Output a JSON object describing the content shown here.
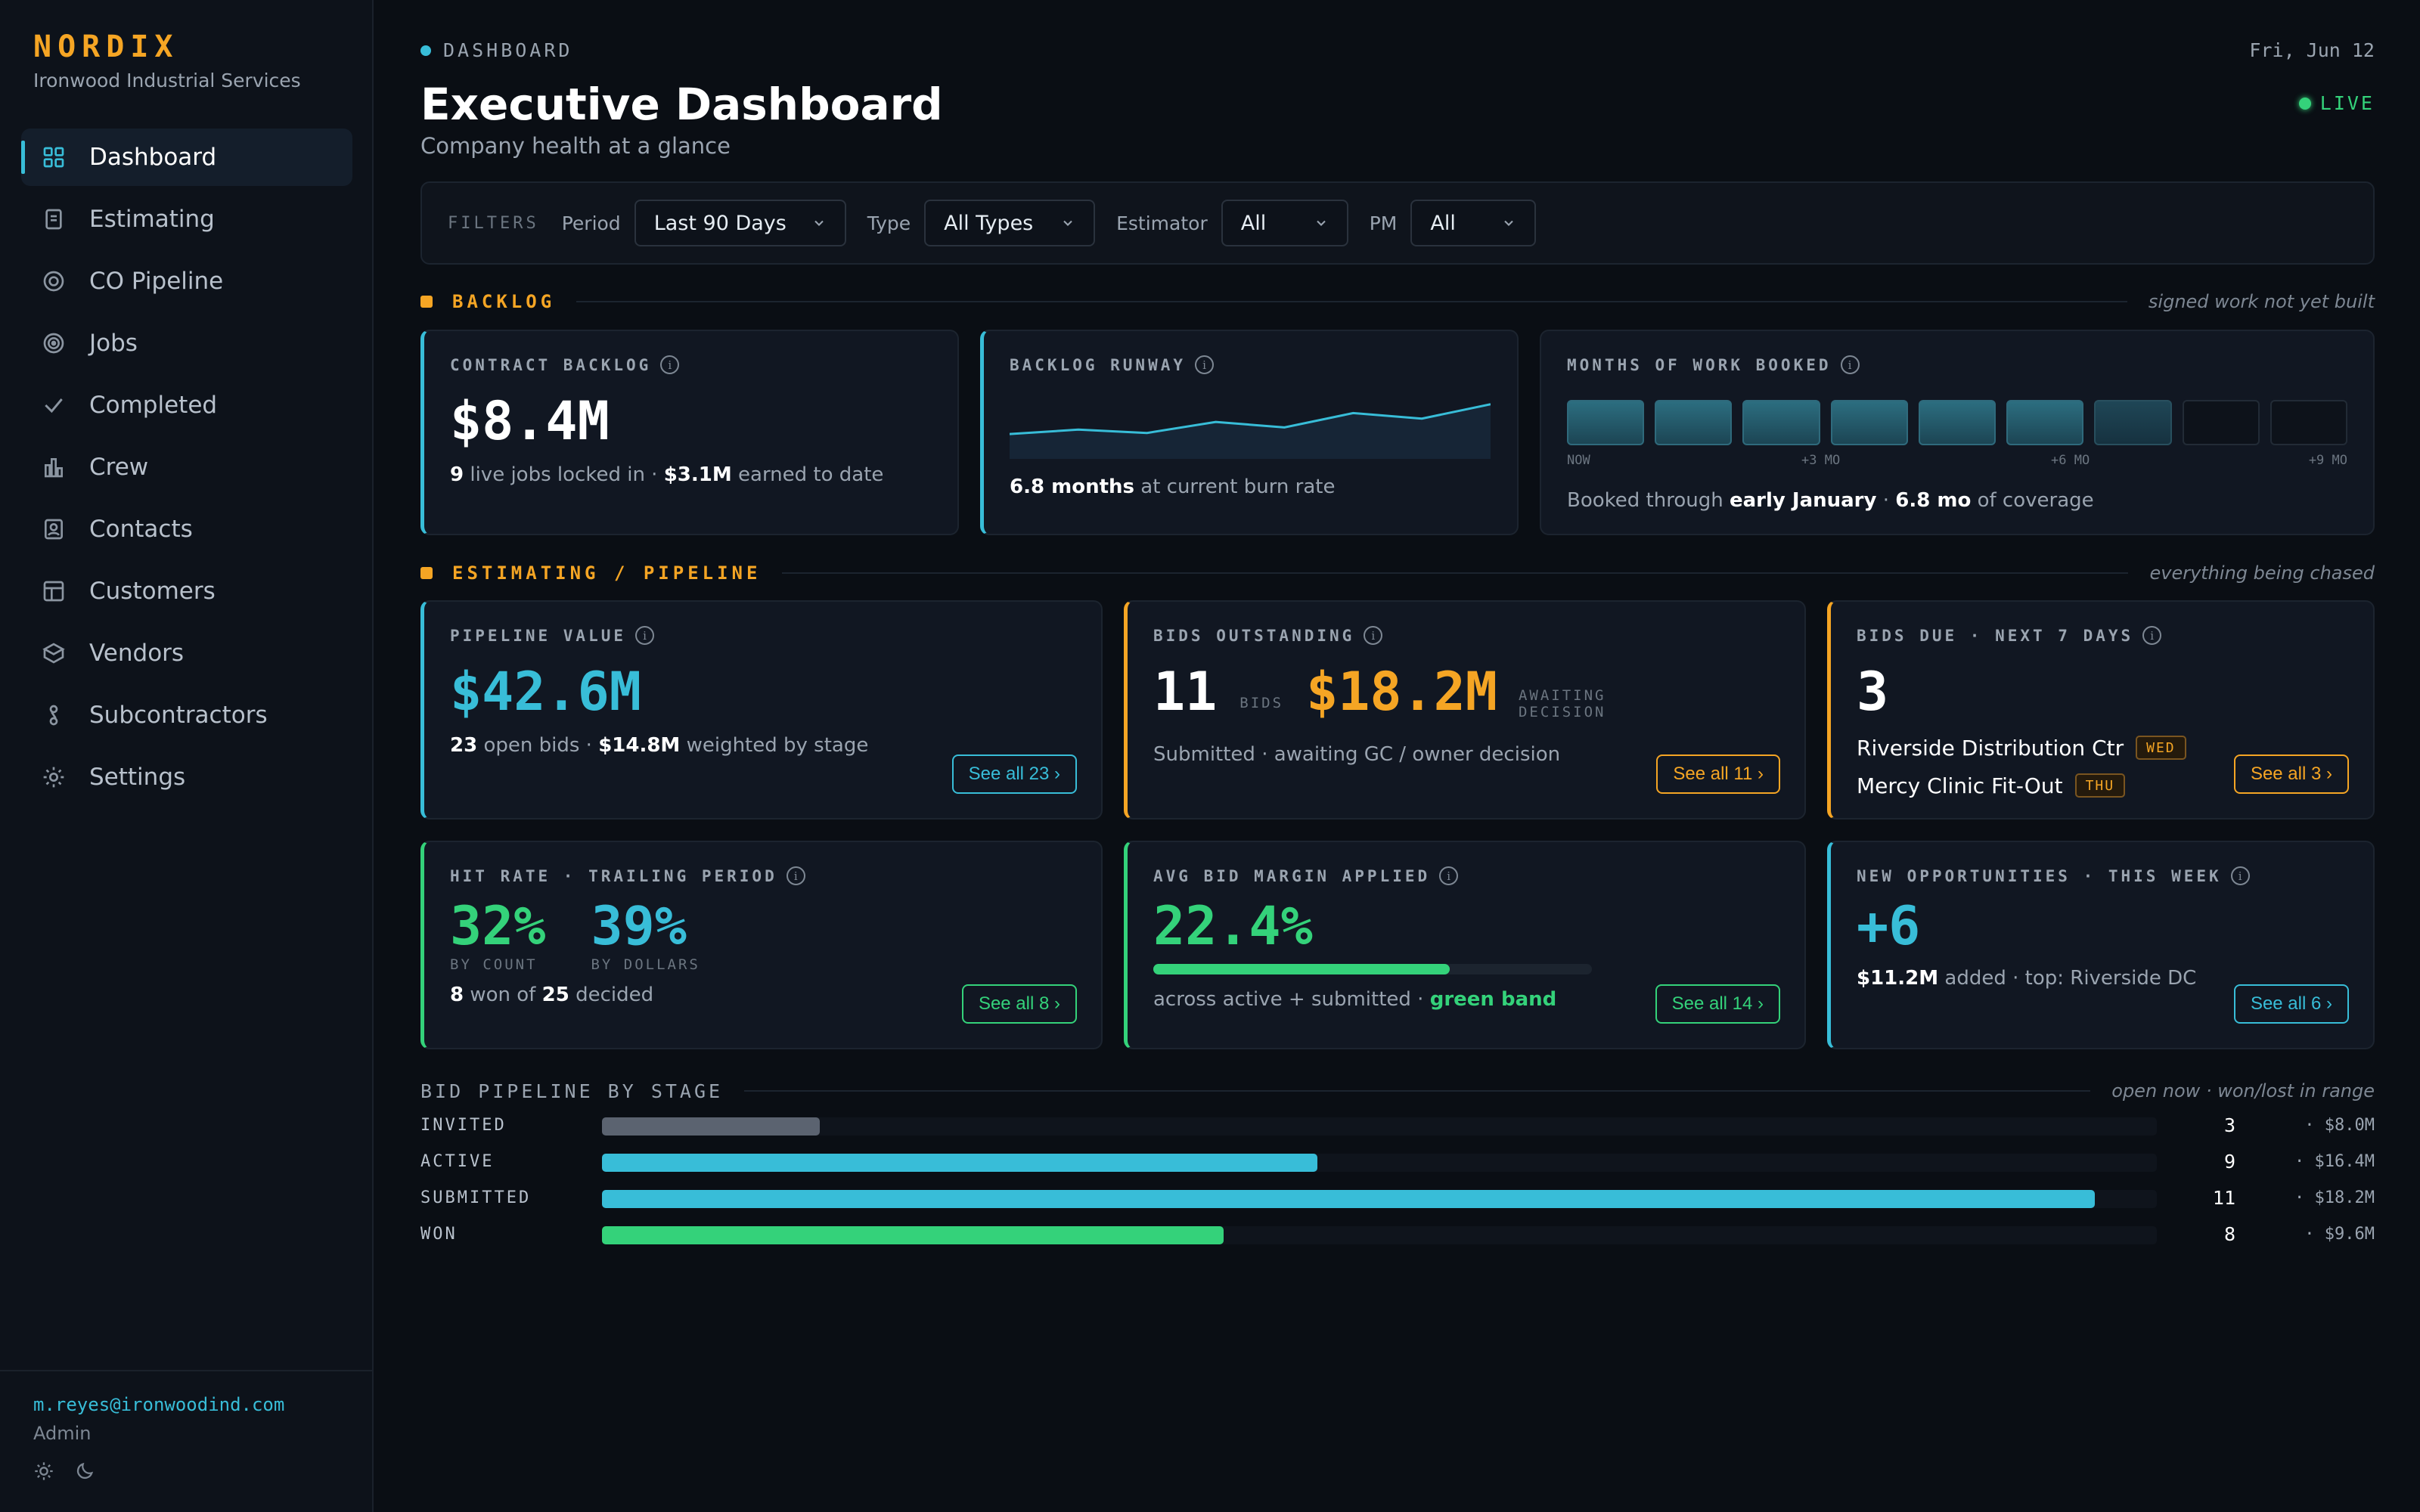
{
  "brand": {
    "name": "NORDIX",
    "company": "Ironwood Industrial Services"
  },
  "nav": [
    {
      "label": "Dashboard",
      "icon": "grid-icon",
      "active": true
    },
    {
      "label": "Estimating",
      "icon": "clipboard-icon"
    },
    {
      "label": "CO Pipeline",
      "icon": "circle-icon"
    },
    {
      "label": "Jobs",
      "icon": "target-icon"
    },
    {
      "label": "Completed",
      "icon": "check-icon"
    },
    {
      "label": "Crew",
      "icon": "bar-chart-icon"
    },
    {
      "label": "Contacts",
      "icon": "contact-icon"
    },
    {
      "label": "Customers",
      "icon": "table-icon"
    },
    {
      "label": "Vendors",
      "icon": "box-icon"
    },
    {
      "label": "Subcontractors",
      "icon": "link-icon"
    },
    {
      "label": "Settings",
      "icon": "gear-icon"
    }
  ],
  "user": {
    "email": "m.reyes@ironwoodind.com",
    "role": "Admin"
  },
  "header": {
    "breadcrumb": "DASHBOARD",
    "date": "Fri, Jun 12",
    "title": "Executive Dashboard",
    "subtitle": "Company health at a glance",
    "live": "LIVE"
  },
  "filters": {
    "label": "FILTERS",
    "period_label": "Period",
    "period_value": "Last 90 Days",
    "type_label": "Type",
    "type_value": "All Types",
    "estimator_label": "Estimator",
    "estimator_value": "All",
    "pm_label": "PM",
    "pm_value": "All"
  },
  "backlog": {
    "title": "BACKLOG",
    "note": "signed work not yet built",
    "contract": {
      "label": "CONTRACT BACKLOG",
      "value": "$8.4M",
      "jobs": "9",
      "jobs_text": "live jobs locked in ·",
      "earned": "$3.1M",
      "earned_text": "earned to date"
    },
    "runway": {
      "label": "BACKLOG RUNWAY",
      "months": "6.8 months",
      "months_text": "at current burn rate",
      "trend": [
        3.4,
        4.2,
        3.6,
        5.6,
        4.6,
        7.2,
        6.2,
        8.8
      ]
    },
    "months_booked": {
      "label": "MONTHS OF WORK BOOKED",
      "filled": 6,
      "partial": 1,
      "total": 9,
      "ticks": [
        "NOW",
        "+3 MO",
        "+6 MO",
        "+9 MO"
      ],
      "text_a": "Booked through",
      "through": "early January",
      "sep": "·",
      "coverage": "6.8 mo",
      "text_b": "of coverage"
    }
  },
  "pipeline": {
    "title": "ESTIMATING / PIPELINE",
    "note": "everything being chased",
    "value": {
      "label": "PIPELINE VALUE",
      "value": "$42.6M",
      "bids": "23",
      "bids_text": "open bids ·",
      "weighted": "$14.8M",
      "weighted_text": "weighted by stage",
      "button": "See all 23 ›"
    },
    "outstanding": {
      "label": "BIDS OUTSTANDING",
      "count": "11",
      "count_unit": "BIDS",
      "amount": "$18.2M",
      "amount_unit_1": "AWAITING",
      "amount_unit_2": "DECISION",
      "text": "Submitted · awaiting GC / owner decision",
      "button": "See all 11 ›"
    },
    "due": {
      "label": "BIDS DUE · NEXT 7 DAYS",
      "count": "3",
      "items": [
        {
          "name": "Riverside Distribution Ctr",
          "day": "WED"
        },
        {
          "name": "Mercy Clinic Fit-Out",
          "day": "THU"
        }
      ],
      "button": "See all 3 ›"
    },
    "hit_rate": {
      "label": "HIT RATE · TRAILING PERIOD",
      "count_pct": "32%",
      "count_label": "BY COUNT",
      "dollar_pct": "39%",
      "dollar_label": "BY DOLLARS",
      "won": "8",
      "won_text": "won of",
      "decided": "25",
      "decided_text": "decided",
      "button": "See all 8 ›"
    },
    "margin": {
      "label": "AVG BID MARGIN APPLIED",
      "value": "22.4%",
      "fill": 0.675,
      "text": "across active + submitted ·",
      "band": "green band",
      "button": "See all 14 ›"
    },
    "new_opps": {
      "label": "NEW OPPORTUNITIES · THIS WEEK",
      "value": "+6",
      "added": "$11.2M",
      "added_text": "added · top: Riverside DC",
      "button": "See all 6 ›"
    }
  },
  "stages": {
    "title": "BID PIPELINE BY STAGE",
    "note": "open now · won/lost in range",
    "rows": [
      {
        "name": "INVITED",
        "count": "3",
        "amount": "· $8.0M",
        "fill": 0.14,
        "color": "#5b6370"
      },
      {
        "name": "ACTIVE",
        "count": "9",
        "amount": "· $16.4M",
        "fill": 0.46,
        "color": "#38bdd8"
      },
      {
        "name": "SUBMITTED",
        "count": "11",
        "amount": "· $18.2M",
        "fill": 0.96,
        "color": "#38bdd8"
      },
      {
        "name": "WON",
        "count": "8",
        "amount": "· $9.6M",
        "fill": 0.4,
        "color": "#34d27a"
      }
    ]
  }
}
